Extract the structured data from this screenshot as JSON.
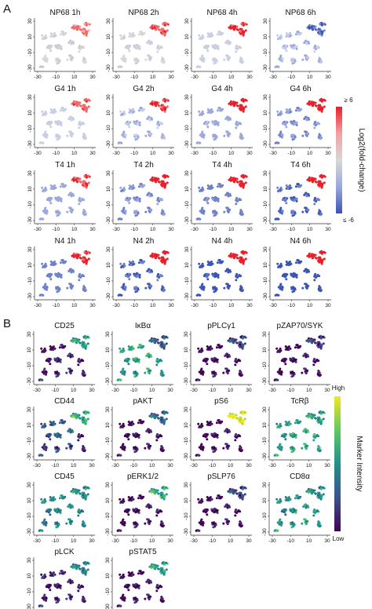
{
  "panel_labels": {
    "a": "A",
    "b": "B"
  },
  "chart_data": [
    {
      "type": "scatter",
      "panel": "A",
      "xlim": [
        -30,
        30
      ],
      "ylim": [
        -30,
        30
      ],
      "x_ticks": [
        "-30",
        "-10",
        "10",
        "30"
      ],
      "y_ticks": [
        "30",
        "10",
        "-10",
        "-30"
      ],
      "plots": [
        {
          "title": "NP68 1h",
          "pattern": "fc-A1"
        },
        {
          "title": "NP68 2h",
          "pattern": "fc-A2"
        },
        {
          "title": "NP68 4h",
          "pattern": "fc-A3"
        },
        {
          "title": "NP68 6h",
          "pattern": "fc-A4"
        },
        {
          "title": "G4 1h",
          "pattern": "fc-B1"
        },
        {
          "title": "G4 2h",
          "pattern": "fc-B2"
        },
        {
          "title": "G4 4h",
          "pattern": "fc-B3"
        },
        {
          "title": "G4 6h",
          "pattern": "fc-B4"
        },
        {
          "title": "T4 1h",
          "pattern": "fc-C1"
        },
        {
          "title": "T4 2h",
          "pattern": "fc-C2"
        },
        {
          "title": "T4 4h",
          "pattern": "fc-C3"
        },
        {
          "title": "T4 6h",
          "pattern": "fc-C4"
        },
        {
          "title": "N4 1h",
          "pattern": "fc-D1"
        },
        {
          "title": "N4 2h",
          "pattern": "fc-D2"
        },
        {
          "title": "N4 4h",
          "pattern": "fc-D3"
        },
        {
          "title": "N4 6h",
          "pattern": "fc-D4"
        }
      ],
      "colorbar": {
        "top_label": "≥ 6",
        "bottom_label": "≤ -6",
        "title": "Log2(fold-change)",
        "colors": [
          "#e8202a",
          "#f2a0a0",
          "#d8d8d8",
          "#9aa8dc",
          "#3b55b5"
        ]
      }
    },
    {
      "type": "scatter",
      "panel": "B",
      "xlim": [
        -30,
        30
      ],
      "ylim": [
        -30,
        30
      ],
      "x_ticks": [
        "-30",
        "-10",
        "10",
        "30"
      ],
      "y_ticks": [
        "30",
        "10",
        "-10",
        "-30"
      ],
      "plots": [
        {
          "title": "CD25",
          "pattern": "mk-cd25"
        },
        {
          "title": "IκBα",
          "pattern": "mk-ikba"
        },
        {
          "title": "pPLCγ1",
          "pattern": "mk-plcg"
        },
        {
          "title": "pZAP70/SYK",
          "pattern": "mk-zap"
        },
        {
          "title": "CD44",
          "pattern": "mk-cd44"
        },
        {
          "title": "pAKT",
          "pattern": "mk-akt"
        },
        {
          "title": "pS6",
          "pattern": "mk-s6"
        },
        {
          "title": "TcRβ",
          "pattern": "mk-tcr"
        },
        {
          "title": "CD45",
          "pattern": "mk-cd45"
        },
        {
          "title": "pERK1/2",
          "pattern": "mk-erk"
        },
        {
          "title": "pSLP76",
          "pattern": "mk-slp"
        },
        {
          "title": "CD8α",
          "pattern": "mk-cd8"
        },
        {
          "title": "pLCK",
          "pattern": "mk-lck"
        },
        {
          "title": "pSTAT5",
          "pattern": "mk-stat5"
        }
      ],
      "colorbar": {
        "top_label": "High",
        "bottom_label": "Low",
        "title": "Marker Intensity",
        "colors": [
          "#f4e61f",
          "#5ec962",
          "#21918c",
          "#3b528b",
          "#440154"
        ]
      }
    }
  ]
}
